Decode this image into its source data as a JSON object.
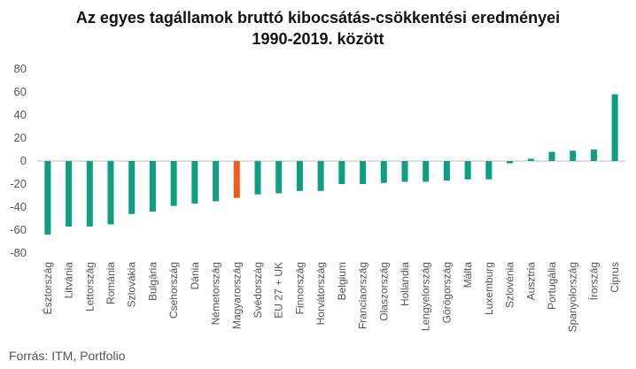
{
  "chart_data": {
    "type": "bar",
    "title_line1": "Az egyes  tagállamok bruttó kibocsátás-csökkentési eredményei",
    "title_line2": "1990-2019. között",
    "categories": [
      "Észtország",
      "Litvánia",
      "Lettország",
      "Románia",
      "Szlovákia",
      "Bulgária",
      "Csehország",
      "Dánia",
      "Németország",
      "Magyarország",
      "Svédország",
      "EU 27 + UK",
      "Finnország",
      "Horvátország",
      "Belgium",
      "Franciaország",
      "Olaszország",
      "Hollandia",
      "Lengyelország",
      "Görögország",
      "Málta",
      "Luxemburg",
      "Szlovénia",
      "Ausztria",
      "Portugália",
      "Spanyolország",
      "Írország",
      "Ciprus"
    ],
    "values": [
      -64,
      -57,
      -57,
      -55,
      -46,
      -44,
      -39,
      -37,
      -35,
      -32,
      -29,
      -28,
      -26,
      -26,
      -20,
      -20,
      -19,
      -18,
      -18,
      -17,
      -16,
      -16,
      -2,
      2,
      8,
      9,
      10,
      58
    ],
    "highlight": "Magyarország",
    "ylim": [
      -80,
      80
    ],
    "yticks": [
      -80,
      -60,
      -40,
      -20,
      0,
      20,
      40,
      60,
      80
    ],
    "grid": false,
    "colors": {
      "bar": "#0e9f82",
      "highlight": "#f15a1d",
      "axis": "#bfbfbf"
    }
  },
  "source": "Forrás: ITM, Portfolio"
}
